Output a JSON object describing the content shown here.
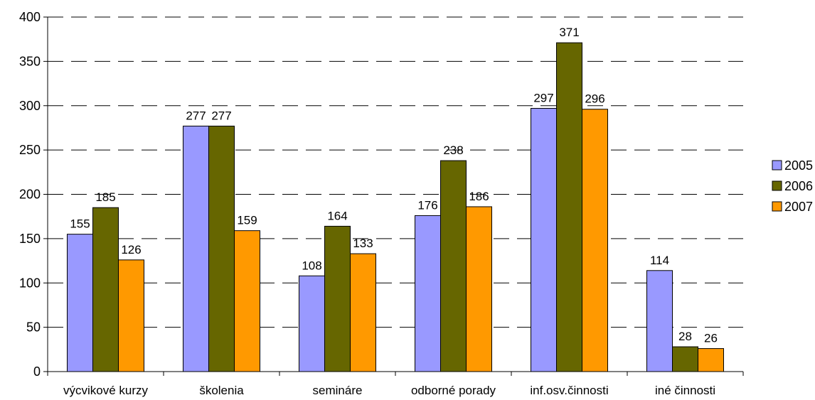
{
  "chart_data": {
    "type": "bar",
    "categories": [
      "výcvikové kurzy",
      "školenia",
      "semináre",
      "odborné porady",
      "inf.osv.činnosti",
      "iné činnosti"
    ],
    "series": [
      {
        "name": "2005",
        "color": "#9999FF",
        "values": [
          155,
          277,
          108,
          176,
          297,
          114
        ]
      },
      {
        "name": "2006",
        "color": "#666600",
        "values": [
          185,
          277,
          164,
          238,
          371,
          28
        ]
      },
      {
        "name": "2007",
        "color": "#FF9900",
        "values": [
          126,
          159,
          133,
          186,
          296,
          26
        ]
      }
    ],
    "y_ticks": [
      "0",
      "50",
      "100",
      "150",
      "200",
      "250",
      "300",
      "350",
      "400"
    ],
    "ylim": [
      0,
      400
    ],
    "grid": "dashed horizontal",
    "legend_position": "right"
  }
}
